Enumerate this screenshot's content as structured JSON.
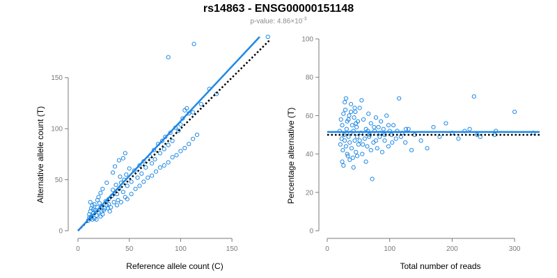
{
  "header": {
    "title": "rs14863 - ENSG00000151148",
    "pvalue_prefix": "p-value: 4.86×10",
    "pvalue_exponent": "-3"
  },
  "colors": {
    "points": "#1e88e5",
    "fit_line": "#1e88e5",
    "reference_line": "#000000",
    "axis": "#7a7a7a"
  },
  "chart_data": [
    {
      "type": "scatter",
      "xlabel": "Reference allele count (C)",
      "ylabel": "Alternative allele count (T)",
      "xlim": [
        0,
        175
      ],
      "ylim": [
        0,
        190
      ],
      "x_ticks": [
        0,
        50,
        100,
        150
      ],
      "y_ticks": [
        0,
        50,
        100,
        150
      ],
      "fit_line": {
        "color": "#1e88e5",
        "style": "solid",
        "from": [
          0,
          0
        ],
        "to": [
          177,
          190
        ]
      },
      "reference_line": {
        "color": "#000000",
        "style": "dotted",
        "from": [
          0,
          0
        ],
        "to": [
          187,
          187
        ]
      },
      "points": [
        [
          12,
          12
        ],
        [
          13,
          14
        ],
        [
          11,
          16
        ],
        [
          12,
          19
        ],
        [
          13,
          22
        ],
        [
          15,
          17
        ],
        [
          14,
          25
        ],
        [
          12,
          28
        ],
        [
          16,
          12
        ],
        [
          18,
          15
        ],
        [
          17,
          20
        ],
        [
          19,
          23
        ],
        [
          20,
          18
        ],
        [
          22,
          14
        ],
        [
          21,
          27
        ],
        [
          23,
          24
        ],
        [
          25,
          20
        ],
        [
          24,
          16
        ],
        [
          27,
          29
        ],
        [
          28,
          25
        ],
        [
          30,
          31
        ],
        [
          29,
          22
        ],
        [
          31,
          19
        ],
        [
          33,
          34
        ],
        [
          35,
          28
        ],
        [
          34,
          40
        ],
        [
          38,
          36
        ],
        [
          37,
          45
        ],
        [
          40,
          41
        ],
        [
          39,
          30
        ],
        [
          42,
          47
        ],
        [
          41,
          53
        ],
        [
          44,
          38
        ],
        [
          45,
          50
        ],
        [
          47,
          55
        ],
        [
          48,
          44
        ],
        [
          46,
          33
        ],
        [
          50,
          61
        ],
        [
          52,
          48
        ],
        [
          55,
          59
        ],
        [
          58,
          52
        ],
        [
          60,
          64
        ],
        [
          62,
          56
        ],
        [
          64,
          68
        ],
        [
          66,
          62
        ],
        [
          70,
          73
        ],
        [
          72,
          66
        ],
        [
          74,
          79
        ],
        [
          75,
          70
        ],
        [
          78,
          85
        ],
        [
          80,
          76
        ],
        [
          82,
          88
        ],
        [
          84,
          80
        ],
        [
          85,
          92
        ],
        [
          88,
          84
        ],
        [
          90,
          96
        ],
        [
          92,
          88
        ],
        [
          95,
          101
        ],
        [
          98,
          98
        ],
        [
          100,
          104
        ],
        [
          102,
          110
        ],
        [
          104,
          118
        ],
        [
          106,
          120
        ],
        [
          108,
          115
        ],
        [
          112,
          116
        ],
        [
          113,
          183
        ],
        [
          88,
          170
        ],
        [
          120,
          124
        ],
        [
          128,
          139
        ],
        [
          135,
          134
        ],
        [
          185,
          190
        ],
        [
          10,
          10
        ],
        [
          11,
          13
        ],
        [
          14,
          11
        ],
        [
          15,
          21
        ],
        [
          16,
          26
        ],
        [
          18,
          11
        ],
        [
          19,
          30
        ],
        [
          20,
          33
        ],
        [
          22,
          37
        ],
        [
          23,
          19
        ],
        [
          24,
          41
        ],
        [
          26,
          22
        ],
        [
          28,
          47
        ],
        [
          30,
          26
        ],
        [
          32,
          23
        ],
        [
          34,
          57
        ],
        [
          36,
          63
        ],
        [
          38,
          25
        ],
        [
          40,
          69
        ],
        [
          42,
          28
        ],
        [
          44,
          71
        ],
        [
          46,
          76
        ],
        [
          48,
          31
        ],
        [
          52,
          36
        ],
        [
          56,
          41
        ],
        [
          60,
          44
        ],
        [
          64,
          48
        ],
        [
          68,
          52
        ],
        [
          72,
          54
        ],
        [
          76,
          58
        ],
        [
          80,
          62
        ],
        [
          84,
          64
        ],
        [
          88,
          67
        ],
        [
          92,
          72
        ],
        [
          96,
          74
        ],
        [
          100,
          78
        ],
        [
          104,
          81
        ],
        [
          108,
          85
        ],
        [
          112,
          90
        ],
        [
          116,
          94
        ]
      ]
    },
    {
      "type": "scatter",
      "xlabel": "Total number of reads",
      "ylabel": "Percentage alternative (T)",
      "xlim": [
        0,
        340
      ],
      "ylim": [
        0,
        100
      ],
      "x_ticks": [
        0,
        100,
        200,
        300
      ],
      "y_ticks": [
        0,
        20,
        40,
        60,
        80,
        100
      ],
      "fit_line": {
        "color": "#1e88e5",
        "style": "solid",
        "y": 51.5
      },
      "reference_line": {
        "color": "#000000",
        "style": "dotted",
        "y": 50
      },
      "points": [
        [
          20,
          52
        ],
        [
          21,
          45
        ],
        [
          22,
          58
        ],
        [
          23,
          48
        ],
        [
          24,
          55
        ],
        [
          25,
          42
        ],
        [
          26,
          61
        ],
        [
          27,
          50
        ],
        [
          28,
          47
        ],
        [
          29,
          63
        ],
        [
          30,
          44
        ],
        [
          31,
          53
        ],
        [
          32,
          57
        ],
        [
          33,
          39
        ],
        [
          34,
          49
        ],
        [
          35,
          60
        ],
        [
          36,
          46
        ],
        [
          37,
          51
        ],
        [
          38,
          66
        ],
        [
          39,
          43
        ],
        [
          40,
          55
        ],
        [
          41,
          38
        ],
        [
          42,
          52
        ],
        [
          43,
          59
        ],
        [
          44,
          47
        ],
        [
          45,
          62
        ],
        [
          46,
          41
        ],
        [
          47,
          54
        ],
        [
          48,
          49
        ],
        [
          49,
          57
        ],
        [
          50,
          45
        ],
        [
          52,
          64
        ],
        [
          54,
          51
        ],
        [
          56,
          40
        ],
        [
          58,
          58
        ],
        [
          60,
          48
        ],
        [
          62,
          53
        ],
        [
          64,
          44
        ],
        [
          66,
          61
        ],
        [
          68,
          50
        ],
        [
          70,
          56
        ],
        [
          72,
          27
        ],
        [
          74,
          46
        ],
        [
          76,
          52
        ],
        [
          78,
          59
        ],
        [
          80,
          43
        ],
        [
          82,
          54
        ],
        [
          84,
          49
        ],
        [
          86,
          57
        ],
        [
          88,
          41
        ],
        [
          90,
          53
        ],
        [
          92,
          47
        ],
        [
          95,
          60
        ],
        [
          98,
          44
        ],
        [
          100,
          52
        ],
        [
          103,
          50
        ],
        [
          106,
          55
        ],
        [
          110,
          48
        ],
        [
          115,
          69
        ],
        [
          120,
          51
        ],
        [
          125,
          46
        ],
        [
          130,
          53
        ],
        [
          135,
          42
        ],
        [
          140,
          50
        ],
        [
          150,
          47
        ],
        [
          160,
          43
        ],
        [
          170,
          54
        ],
        [
          180,
          49
        ],
        [
          190,
          56
        ],
        [
          200,
          51
        ],
        [
          210,
          48
        ],
        [
          220,
          52
        ],
        [
          228,
          53
        ],
        [
          235,
          70
        ],
        [
          240,
          50
        ],
        [
          245,
          49
        ],
        [
          268,
          50
        ],
        [
          270,
          52
        ],
        [
          300,
          62
        ],
        [
          330,
          51
        ],
        [
          24,
          36
        ],
        [
          26,
          34
        ],
        [
          28,
          67
        ],
        [
          30,
          69
        ],
        [
          32,
          40
        ],
        [
          34,
          58
        ],
        [
          36,
          37
        ],
        [
          38,
          62
        ],
        [
          42,
          33
        ],
        [
          44,
          64
        ],
        [
          46,
          56
        ],
        [
          48,
          39
        ],
        [
          52,
          47
        ],
        [
          55,
          68
        ],
        [
          57,
          45
        ],
        [
          62,
          36
        ],
        [
          65,
          52
        ],
        [
          67,
          49
        ],
        [
          70,
          42
        ],
        [
          75,
          54
        ],
        [
          78,
          47
        ],
        [
          85,
          51
        ],
        [
          92,
          50
        ],
        [
          98,
          55
        ],
        [
          104,
          46
        ],
        [
          112,
          52
        ],
        [
          118,
          49
        ],
        [
          126,
          53
        ]
      ]
    }
  ]
}
